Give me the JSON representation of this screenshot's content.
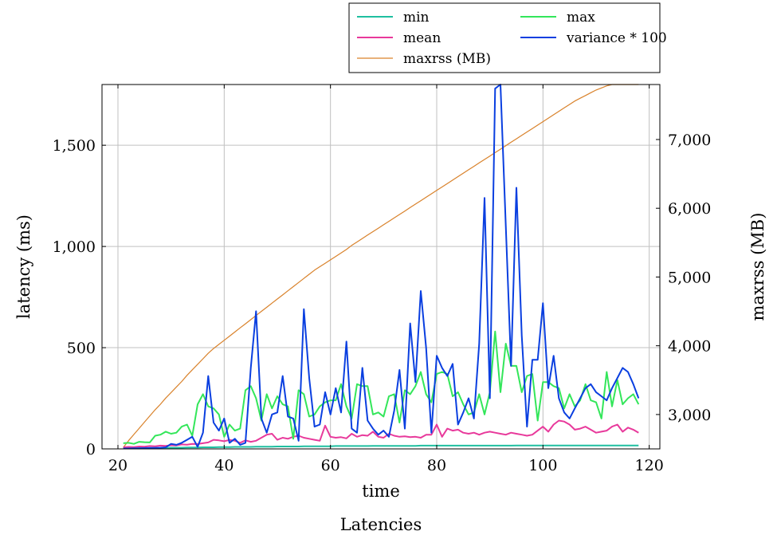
{
  "chart_data": {
    "type": "line",
    "title": "Latencies",
    "xlabel": "time",
    "ylabel": "latency (ms)",
    "y2label": "maxrss (MB)",
    "xlim": [
      17,
      122
    ],
    "ylim": [
      0,
      1800
    ],
    "y2lim": [
      2500,
      7800
    ],
    "xticks": [
      20,
      40,
      60,
      80,
      100,
      120
    ],
    "yticks": [
      0,
      500,
      1000,
      1500
    ],
    "y2ticks": [
      3000,
      4000,
      5000,
      6000,
      7000
    ],
    "grid": true,
    "legend_position": "top, above plot",
    "series": [
      {
        "name": "min",
        "axis": "left",
        "color": "#1fbfa0",
        "x": [
          21,
          22,
          23,
          24,
          25,
          26,
          27,
          28,
          29,
          30,
          31,
          32,
          33,
          34,
          35,
          36,
          37,
          38,
          39,
          40,
          41,
          42,
          43,
          44,
          45,
          46,
          47,
          48,
          49,
          50,
          51,
          52,
          53,
          54,
          55,
          56,
          57,
          58,
          59,
          60,
          61,
          62,
          63,
          64,
          65,
          66,
          67,
          68,
          69,
          70,
          71,
          72,
          73,
          74,
          75,
          76,
          77,
          78,
          79,
          80,
          81,
          82,
          83,
          84,
          85,
          86,
          87,
          88,
          89,
          90,
          91,
          92,
          93,
          94,
          95,
          96,
          97,
          98,
          99,
          100,
          101,
          102,
          103,
          104,
          105,
          106,
          107,
          108,
          109,
          110,
          111,
          112,
          113,
          114,
          115,
          116,
          117,
          118
        ],
        "y": [
          3,
          3,
          3,
          4,
          4,
          4,
          5,
          5,
          5,
          6,
          6,
          6,
          7,
          7,
          7,
          8,
          8,
          8,
          9,
          9,
          9,
          10,
          10,
          10,
          10,
          11,
          11,
          11,
          11,
          12,
          12,
          12,
          12,
          12,
          13,
          13,
          13,
          13,
          13,
          13,
          14,
          14,
          14,
          14,
          14,
          14,
          14,
          15,
          15,
          15,
          15,
          15,
          15,
          15,
          15,
          15,
          16,
          16,
          16,
          16,
          16,
          16,
          16,
          16,
          16,
          16,
          16,
          16,
          16,
          16,
          16,
          16,
          16,
          16,
          17,
          17,
          17,
          17,
          17,
          17,
          17,
          17,
          17,
          17,
          17,
          17,
          17,
          17,
          17,
          17,
          17,
          17,
          17,
          17,
          17,
          17,
          17,
          17
        ]
      },
      {
        "name": "mean",
        "axis": "left",
        "color": "#e8399b",
        "x": [
          21,
          22,
          23,
          24,
          25,
          26,
          27,
          28,
          29,
          30,
          31,
          32,
          33,
          34,
          35,
          36,
          37,
          38,
          39,
          40,
          41,
          42,
          43,
          44,
          45,
          46,
          47,
          48,
          49,
          50,
          51,
          52,
          53,
          54,
          55,
          56,
          57,
          58,
          59,
          60,
          61,
          62,
          63,
          64,
          65,
          66,
          67,
          68,
          69,
          70,
          71,
          72,
          73,
          74,
          75,
          76,
          77,
          78,
          79,
          80,
          81,
          82,
          83,
          84,
          85,
          86,
          87,
          88,
          89,
          90,
          91,
          92,
          93,
          94,
          95,
          96,
          97,
          98,
          99,
          100,
          101,
          102,
          103,
          104,
          105,
          106,
          107,
          108,
          109,
          110,
          111,
          112,
          113,
          114,
          115,
          116,
          117,
          118
        ],
        "y": [
          8,
          10,
          9,
          12,
          11,
          14,
          13,
          16,
          15,
          18,
          17,
          22,
          21,
          25,
          24,
          28,
          32,
          45,
          42,
          38,
          44,
          40,
          30,
          42,
          35,
          40,
          55,
          70,
          75,
          45,
          55,
          50,
          60,
          65,
          55,
          50,
          45,
          40,
          115,
          60,
          55,
          58,
          52,
          75,
          60,
          68,
          65,
          85,
          60,
          55,
          75,
          65,
          60,
          62,
          58,
          60,
          55,
          70,
          70,
          120,
          60,
          100,
          90,
          95,
          80,
          75,
          80,
          70,
          80,
          85,
          80,
          75,
          70,
          80,
          75,
          70,
          65,
          70,
          90,
          110,
          85,
          120,
          140,
          135,
          120,
          95,
          100,
          110,
          95,
          80,
          85,
          90,
          110,
          120,
          85,
          105,
          95,
          80
        ]
      },
      {
        "name": "max",
        "axis": "left",
        "color": "#33e65a",
        "x": [
          21,
          22,
          23,
          24,
          25,
          26,
          27,
          28,
          29,
          30,
          31,
          32,
          33,
          34,
          35,
          36,
          37,
          38,
          39,
          40,
          41,
          42,
          43,
          44,
          45,
          46,
          47,
          48,
          49,
          50,
          51,
          52,
          53,
          54,
          55,
          56,
          57,
          58,
          59,
          60,
          61,
          62,
          63,
          64,
          65,
          66,
          67,
          68,
          69,
          70,
          71,
          72,
          73,
          74,
          75,
          76,
          77,
          78,
          79,
          80,
          81,
          82,
          83,
          84,
          85,
          86,
          87,
          88,
          89,
          90,
          91,
          92,
          93,
          94,
          95,
          96,
          97,
          98,
          99,
          100,
          101,
          102,
          103,
          104,
          105,
          106,
          107,
          108,
          109,
          110,
          111,
          112,
          113,
          114,
          115,
          116,
          117,
          118
        ],
        "y": [
          28,
          30,
          25,
          35,
          33,
          32,
          65,
          70,
          85,
          75,
          80,
          110,
          120,
          65,
          220,
          270,
          210,
          200,
          170,
          60,
          120,
          90,
          100,
          290,
          310,
          250,
          140,
          270,
          200,
          260,
          220,
          210,
          50,
          290,
          270,
          160,
          170,
          210,
          230,
          240,
          240,
          320,
          210,
          150,
          320,
          310,
          310,
          170,
          180,
          160,
          260,
          270,
          130,
          290,
          270,
          310,
          380,
          270,
          230,
          370,
          380,
          370,
          260,
          280,
          220,
          170,
          180,
          270,
          170,
          280,
          580,
          280,
          520,
          410,
          410,
          280,
          360,
          370,
          140,
          330,
          330,
          310,
          300,
          200,
          270,
          210,
          240,
          320,
          240,
          230,
          150,
          380,
          210,
          340,
          220,
          250,
          270,
          220
        ]
      },
      {
        "name": "variance * 100",
        "axis": "left",
        "color": "#0a3fe0",
        "x": [
          21,
          22,
          23,
          24,
          25,
          26,
          27,
          28,
          29,
          30,
          31,
          32,
          33,
          34,
          35,
          36,
          37,
          38,
          39,
          40,
          41,
          42,
          43,
          44,
          45,
          46,
          47,
          48,
          49,
          50,
          51,
          52,
          53,
          54,
          55,
          56,
          57,
          58,
          59,
          60,
          61,
          62,
          63,
          64,
          65,
          66,
          67,
          68,
          69,
          70,
          71,
          72,
          73,
          74,
          75,
          76,
          77,
          78,
          79,
          80,
          81,
          82,
          83,
          84,
          85,
          86,
          87,
          88,
          89,
          90,
          91,
          92,
          93,
          94,
          95,
          96,
          97,
          98,
          99,
          100,
          101,
          102,
          103,
          104,
          105,
          106,
          107,
          108,
          109,
          110,
          111,
          112,
          113,
          114,
          115,
          116,
          117,
          118
        ],
        "y": [
          2,
          2,
          3,
          3,
          4,
          5,
          5,
          6,
          8,
          25,
          20,
          30,
          45,
          60,
          10,
          80,
          360,
          130,
          90,
          150,
          30,
          50,
          20,
          30,
          400,
          680,
          150,
          80,
          170,
          180,
          360,
          160,
          150,
          40,
          690,
          350,
          110,
          120,
          280,
          170,
          300,
          180,
          530,
          100,
          80,
          400,
          140,
          100,
          70,
          90,
          60,
          190,
          390,
          100,
          620,
          330,
          780,
          500,
          80,
          460,
          400,
          360,
          420,
          120,
          180,
          250,
          150,
          520,
          1240,
          250,
          1780,
          1800,
          1100,
          410,
          1290,
          560,
          110,
          440,
          440,
          720,
          300,
          460,
          250,
          180,
          150,
          200,
          250,
          300,
          320,
          280,
          260,
          240,
          300,
          350,
          400,
          380,
          320,
          250
        ]
      },
      {
        "name": "maxrss (MB)",
        "axis": "right",
        "color": "#d9822b",
        "x": [
          21,
          22,
          23,
          24,
          25,
          26,
          27,
          28,
          29,
          30,
          31,
          32,
          33,
          34,
          35,
          36,
          37,
          38,
          39,
          40,
          41,
          42,
          43,
          44,
          45,
          46,
          47,
          48,
          49,
          50,
          51,
          52,
          53,
          54,
          55,
          56,
          57,
          58,
          59,
          60,
          61,
          62,
          63,
          64,
          65,
          66,
          67,
          68,
          69,
          70,
          71,
          72,
          73,
          74,
          75,
          76,
          77,
          78,
          79,
          80,
          81,
          82,
          83,
          84,
          85,
          86,
          87,
          88,
          89,
          90,
          91,
          92,
          93,
          94,
          95,
          96,
          97,
          98,
          99,
          100,
          101,
          102,
          103,
          104,
          105,
          106,
          107,
          108,
          109,
          110,
          111,
          112,
          113,
          114,
          115,
          116,
          117,
          118
        ],
        "y": [
          2520,
          2620,
          2710,
          2800,
          2890,
          2980,
          3070,
          3150,
          3240,
          3320,
          3400,
          3480,
          3570,
          3650,
          3730,
          3810,
          3890,
          3960,
          4020,
          4080,
          4140,
          4200,
          4260,
          4320,
          4380,
          4440,
          4500,
          4560,
          4620,
          4680,
          4740,
          4800,
          4860,
          4920,
          4980,
          5040,
          5100,
          5150,
          5200,
          5250,
          5300,
          5350,
          5400,
          5460,
          5510,
          5560,
          5610,
          5660,
          5710,
          5760,
          5810,
          5860,
          5910,
          5960,
          6010,
          6060,
          6110,
          6160,
          6210,
          6260,
          6310,
          6360,
          6410,
          6460,
          6510,
          6560,
          6610,
          6660,
          6710,
          6760,
          6810,
          6860,
          6910,
          6960,
          7010,
          7060,
          7110,
          7160,
          7210,
          7260,
          7310,
          7360,
          7410,
          7460,
          7510,
          7560,
          7600,
          7640,
          7680,
          7720,
          7750,
          7780,
          7800,
          7800,
          7800,
          7800,
          7800,
          7800
        ]
      }
    ]
  }
}
